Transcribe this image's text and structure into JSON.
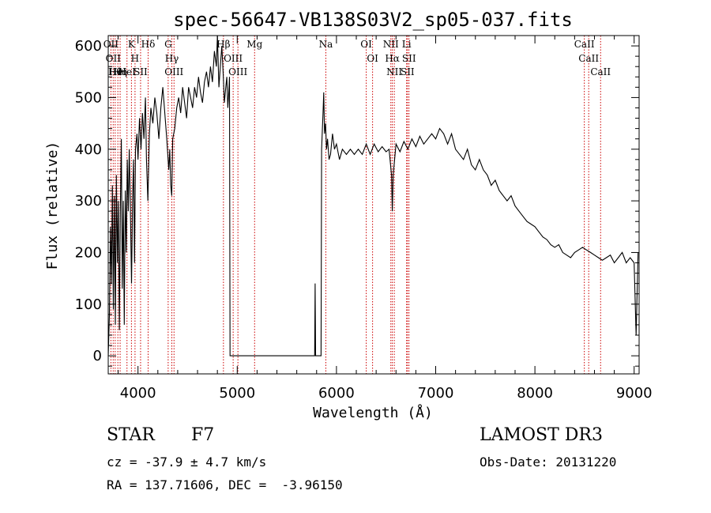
{
  "chart_data": {
    "type": "line",
    "title": "spec-56647-VB138S03V2_sp05-037.fits",
    "xlabel": "Wavelength (Å)",
    "ylabel": "Flux (relative)",
    "xlim": [
      3700,
      9050
    ],
    "ylim": [
      -35,
      620
    ],
    "x_ticks": [
      4000,
      5000,
      6000,
      7000,
      8000,
      9000
    ],
    "y_ticks": [
      0,
      100,
      200,
      300,
      400,
      500,
      600
    ],
    "series": [
      {
        "name": "flux",
        "color": "#000000",
        "points": [
          [
            3700,
            0
          ],
          [
            3712,
            80
          ],
          [
            3722,
            250
          ],
          [
            3732,
            140
          ],
          [
            3742,
            330
          ],
          [
            3752,
            90
          ],
          [
            3762,
            310
          ],
          [
            3772,
            60
          ],
          [
            3782,
            350
          ],
          [
            3792,
            180
          ],
          [
            3802,
            300
          ],
          [
            3812,
            50
          ],
          [
            3822,
            280
          ],
          [
            3832,
            420
          ],
          [
            3842,
            130
          ],
          [
            3852,
            300
          ],
          [
            3862,
            60
          ],
          [
            3872,
            320
          ],
          [
            3882,
            200
          ],
          [
            3892,
            380
          ],
          [
            3902,
            280
          ],
          [
            3912,
            400
          ],
          [
            3922,
            300
          ],
          [
            3935,
            140
          ],
          [
            3945,
            300
          ],
          [
            3955,
            380
          ],
          [
            3965,
            180
          ],
          [
            3975,
            400
          ],
          [
            3990,
            430
          ],
          [
            4000,
            380
          ],
          [
            4015,
            460
          ],
          [
            4030,
            400
          ],
          [
            4045,
            470
          ],
          [
            4060,
            420
          ],
          [
            4075,
            500
          ],
          [
            4085,
            380
          ],
          [
            4100,
            300
          ],
          [
            4115,
            430
          ],
          [
            4130,
            480
          ],
          [
            4150,
            450
          ],
          [
            4170,
            500
          ],
          [
            4190,
            470
          ],
          [
            4210,
            420
          ],
          [
            4230,
            480
          ],
          [
            4250,
            520
          ],
          [
            4270,
            470
          ],
          [
            4290,
            420
          ],
          [
            4310,
            360
          ],
          [
            4320,
            400
          ],
          [
            4330,
            330
          ],
          [
            4340,
            310
          ],
          [
            4350,
            420
          ],
          [
            4370,
            440
          ],
          [
            4390,
            480
          ],
          [
            4410,
            500
          ],
          [
            4430,
            470
          ],
          [
            4450,
            520
          ],
          [
            4470,
            490
          ],
          [
            4490,
            460
          ],
          [
            4510,
            520
          ],
          [
            4530,
            500
          ],
          [
            4550,
            480
          ],
          [
            4570,
            520
          ],
          [
            4590,
            500
          ],
          [
            4610,
            540
          ],
          [
            4630,
            510
          ],
          [
            4650,
            490
          ],
          [
            4670,
            530
          ],
          [
            4690,
            550
          ],
          [
            4710,
            520
          ],
          [
            4730,
            560
          ],
          [
            4750,
            530
          ],
          [
            4770,
            590
          ],
          [
            4790,
            560
          ],
          [
            4800,
            620
          ],
          [
            4815,
            520
          ],
          [
            4830,
            560
          ],
          [
            4845,
            600
          ],
          [
            4860,
            540
          ],
          [
            4870,
            490
          ],
          [
            4885,
            520
          ],
          [
            4895,
            540
          ],
          [
            4905,
            480
          ],
          [
            4915,
            510
          ],
          [
            4922,
            540
          ],
          [
            4928,
            0
          ],
          [
            5000,
            0
          ],
          [
            5200,
            0
          ],
          [
            5400,
            0
          ],
          [
            5600,
            0
          ],
          [
            5780,
            0
          ],
          [
            5785,
            140
          ],
          [
            5790,
            0
          ],
          [
            5800,
            0
          ],
          [
            5845,
            0
          ],
          [
            5850,
            400
          ],
          [
            5858,
            440
          ],
          [
            5865,
            470
          ],
          [
            5872,
            510
          ],
          [
            5880,
            430
          ],
          [
            5890,
            450
          ],
          [
            5900,
            400
          ],
          [
            5910,
            420
          ],
          [
            5925,
            380
          ],
          [
            5940,
            390
          ],
          [
            5960,
            430
          ],
          [
            5980,
            400
          ],
          [
            6000,
            410
          ],
          [
            6030,
            380
          ],
          [
            6060,
            400
          ],
          [
            6100,
            390
          ],
          [
            6140,
            400
          ],
          [
            6180,
            390
          ],
          [
            6220,
            400
          ],
          [
            6260,
            390
          ],
          [
            6300,
            410
          ],
          [
            6340,
            390
          ],
          [
            6380,
            410
          ],
          [
            6420,
            395
          ],
          [
            6460,
            405
          ],
          [
            6500,
            395
          ],
          [
            6530,
            400
          ],
          [
            6555,
            350
          ],
          [
            6563,
            280
          ],
          [
            6572,
            350
          ],
          [
            6600,
            410
          ],
          [
            6640,
            395
          ],
          [
            6680,
            415
          ],
          [
            6720,
            400
          ],
          [
            6760,
            420
          ],
          [
            6800,
            405
          ],
          [
            6840,
            425
          ],
          [
            6880,
            410
          ],
          [
            6920,
            420
          ],
          [
            6960,
            430
          ],
          [
            7000,
            420
          ],
          [
            7040,
            440
          ],
          [
            7080,
            430
          ],
          [
            7120,
            410
          ],
          [
            7160,
            430
          ],
          [
            7200,
            400
          ],
          [
            7240,
            390
          ],
          [
            7280,
            380
          ],
          [
            7320,
            400
          ],
          [
            7360,
            370
          ],
          [
            7400,
            360
          ],
          [
            7440,
            380
          ],
          [
            7480,
            360
          ],
          [
            7520,
            350
          ],
          [
            7560,
            330
          ],
          [
            7600,
            340
          ],
          [
            7640,
            320
          ],
          [
            7680,
            310
          ],
          [
            7720,
            300
          ],
          [
            7760,
            310
          ],
          [
            7800,
            290
          ],
          [
            7840,
            280
          ],
          [
            7880,
            270
          ],
          [
            7920,
            260
          ],
          [
            7960,
            255
          ],
          [
            8000,
            250
          ],
          [
            8040,
            240
          ],
          [
            8080,
            230
          ],
          [
            8120,
            225
          ],
          [
            8160,
            215
          ],
          [
            8200,
            210
          ],
          [
            8240,
            215
          ],
          [
            8280,
            200
          ],
          [
            8320,
            195
          ],
          [
            8360,
            190
          ],
          [
            8400,
            200
          ],
          [
            8440,
            205
          ],
          [
            8480,
            210
          ],
          [
            8520,
            205
          ],
          [
            8560,
            200
          ],
          [
            8600,
            195
          ],
          [
            8640,
            190
          ],
          [
            8680,
            185
          ],
          [
            8720,
            190
          ],
          [
            8760,
            195
          ],
          [
            8800,
            180
          ],
          [
            8840,
            190
          ],
          [
            8880,
            200
          ],
          [
            8920,
            180
          ],
          [
            8960,
            190
          ],
          [
            9000,
            180
          ],
          [
            9020,
            40
          ],
          [
            9040,
            200
          ]
        ]
      }
    ],
    "line_markers": [
      {
        "wavelength": 3727,
        "label": "OII"
      },
      {
        "wavelength": 3750,
        "label": "OII"
      },
      {
        "wavelength": 3770,
        "label": "Hθ"
      },
      {
        "wavelength": 3797,
        "label": "HeI"
      },
      {
        "wavelength": 3820,
        "label": "Hη"
      },
      {
        "wavelength": 3889,
        "label": "HeI"
      },
      {
        "wavelength": 3934,
        "label": "K"
      },
      {
        "wavelength": 3970,
        "label": "H"
      },
      {
        "wavelength": 4026,
        "label": "SII"
      },
      {
        "wavelength": 4102,
        "label": "Hδ"
      },
      {
        "wavelength": 4304,
        "label": "G"
      },
      {
        "wavelength": 4341,
        "label": "Hγ"
      },
      {
        "wavelength": 4363,
        "label": "OIII"
      },
      {
        "wavelength": 4861,
        "label": "Hβ"
      },
      {
        "wavelength": 4959,
        "label": "OIII"
      },
      {
        "wavelength": 5007,
        "label": "OIII"
      },
      {
        "wavelength": 5175,
        "label": "Mg"
      },
      {
        "wavelength": 5893,
        "label": "Na"
      },
      {
        "wavelength": 6300,
        "label": "OI"
      },
      {
        "wavelength": 6364,
        "label": "OI"
      },
      {
        "wavelength": 6548,
        "label": "NII"
      },
      {
        "wavelength": 6563,
        "label": "Hα"
      },
      {
        "wavelength": 6583,
        "label": "NII"
      },
      {
        "wavelength": 6707,
        "label": "Li"
      },
      {
        "wavelength": 6716,
        "label": "SII"
      },
      {
        "wavelength": 6731,
        "label": "SII"
      },
      {
        "wavelength": 8498,
        "label": "CaII"
      },
      {
        "wavelength": 8542,
        "label": "CaII"
      },
      {
        "wavelength": 8662,
        "label": "CaII"
      }
    ]
  },
  "footer": {
    "object_class": "STAR",
    "subclass": "F7",
    "redshift_text": "cz = -37.9 ± 4.7 km/s",
    "coords_text": "RA = 137.71606, DEC =  -3.96150",
    "survey": "LAMOST DR3",
    "obs_date_text": "Obs-Date: 20131220"
  },
  "colors": {
    "axis": "#000000",
    "spectrum": "#000000",
    "marker": "#cc0000"
  }
}
